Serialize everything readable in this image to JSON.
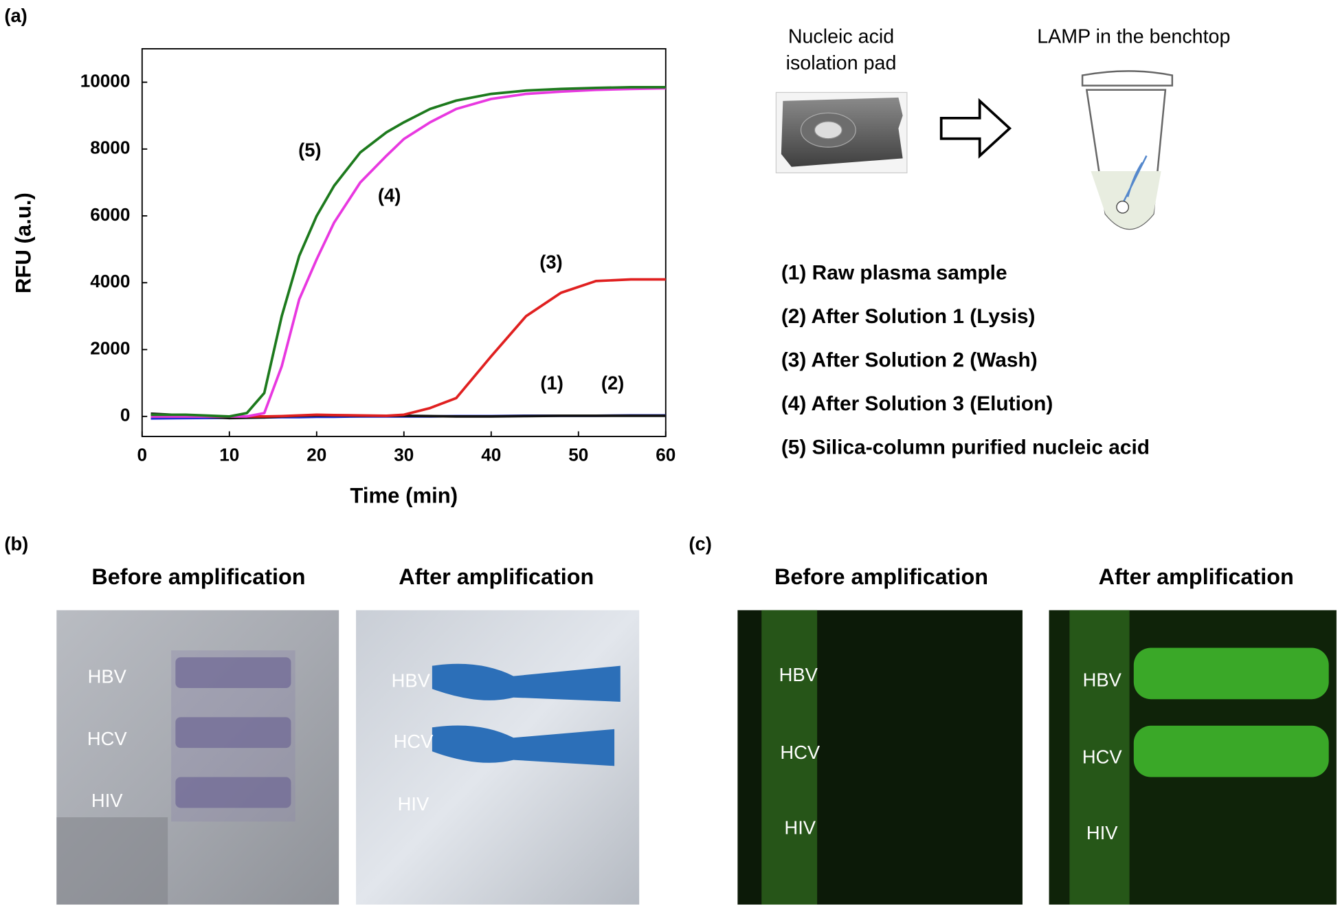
{
  "chart_data": {
    "type": "line",
    "x_label": "Time (min)",
    "y_label": "RFU (a.u.)",
    "x": [
      1,
      5,
      10,
      12,
      14,
      16,
      18,
      20,
      22,
      25,
      28,
      30,
      33,
      36,
      40,
      44,
      48,
      52,
      56,
      60
    ],
    "series": [
      {
        "name": "(1)",
        "color": "#1f2fd0",
        "values": [
          -60,
          -50,
          -40,
          -30,
          -30,
          -20,
          -20,
          -10,
          -10,
          0,
          0,
          0,
          0,
          10,
          10,
          20,
          20,
          20,
          30,
          30
        ]
      },
      {
        "name": "(2)",
        "color": "#111111",
        "values": [
          80,
          30,
          -50,
          -40,
          -30,
          0,
          20,
          30,
          30,
          20,
          20,
          20,
          10,
          0,
          0,
          10,
          20,
          20,
          20,
          20
        ]
      },
      {
        "name": "(3)",
        "color": "#e02020",
        "values": [
          0,
          0,
          0,
          0,
          0,
          10,
          30,
          50,
          40,
          30,
          20,
          50,
          250,
          550,
          1800,
          3000,
          3700,
          4050,
          4100,
          4100
        ]
      },
      {
        "name": "(4)",
        "color": "#e838e0",
        "values": [
          0,
          0,
          0,
          0,
          100,
          1500,
          3500,
          4700,
          5800,
          7000,
          7800,
          8300,
          8800,
          9200,
          9500,
          9650,
          9720,
          9770,
          9800,
          9820
        ]
      },
      {
        "name": "(5)",
        "color": "#1d7a1d",
        "values": [
          50,
          50,
          0,
          100,
          700,
          3000,
          4800,
          6000,
          6900,
          7900,
          8500,
          8800,
          9200,
          9450,
          9650,
          9750,
          9800,
          9830,
          9850,
          9850
        ]
      }
    ],
    "xlim": [
      0,
      60
    ],
    "xticks": [
      0,
      10,
      20,
      30,
      40,
      50,
      60
    ],
    "ylim": [
      -600,
      11000
    ],
    "yticks": [
      0,
      2000,
      4000,
      6000,
      8000,
      10000
    ]
  },
  "panel_labels": [
    "(a)",
    "(b)",
    "(c)"
  ],
  "diagram": {
    "pad_label": [
      "Nucleic acid",
      "isolation pad"
    ],
    "tube_label": "LAMP in the benchtop"
  },
  "conditions": [
    "(1) Raw plasma sample",
    "(2) After Solution 1 (Lysis)",
    "(3) After Solution 2 (Wash)",
    "(4) After Solution 3 (Elution)",
    "(5) Silica-column purified nucleic acid"
  ],
  "photos": [
    {
      "title": "Before amplification",
      "lanes": [
        "HBV",
        "HCV",
        "HIV"
      ]
    },
    {
      "title": "After amplification",
      "lanes": [
        "HBV",
        "HCV",
        "HIV"
      ]
    },
    {
      "title": "Before amplification",
      "lanes": [
        "HBV",
        "HCV",
        "HIV"
      ]
    },
    {
      "title": "After amplification",
      "lanes": [
        "HBV",
        "HCV",
        "HIV"
      ]
    }
  ]
}
